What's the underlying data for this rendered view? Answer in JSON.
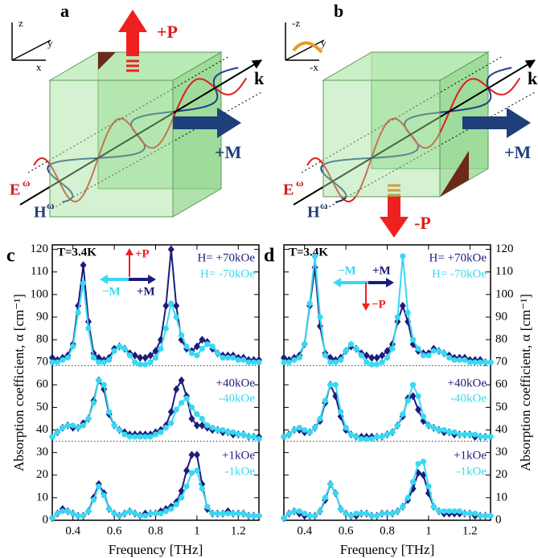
{
  "diagrams": [
    {
      "panel": "a",
      "axes": [
        "z",
        "y",
        "x"
      ],
      "polarization": "+P",
      "wavevector": "k",
      "magnetization": "+M",
      "e_field": {
        "letter": "E",
        "sup": "ω"
      },
      "h_field": {
        "letter": "H",
        "sup": "ω"
      }
    },
    {
      "panel": "b",
      "axes": [
        "-z",
        "y",
        "-x"
      ],
      "polarization": "-P",
      "wavevector": "k",
      "magnetization": "+M",
      "e_field": {
        "letter": "E",
        "sup": "ω"
      },
      "h_field": {
        "letter": "H",
        "sup": "ω"
      }
    }
  ],
  "chart_data": [
    {
      "type": "line",
      "panel": "c",
      "temperature": "T=3.4K",
      "annotations": {
        "p": "+P",
        "m_minus": "−M",
        "m_plus": "+M"
      },
      "xlabel": "Frequency [THz]",
      "ylabel": "Absorption coefficient, α [cm⁻¹]",
      "y_side": "left",
      "xlim": [
        0.3,
        1.3
      ],
      "xticks": [
        0.4,
        0.6,
        0.8,
        1.0,
        1.2
      ],
      "ylim": [
        0,
        122
      ],
      "yticks": [
        0,
        10,
        20,
        30,
        40,
        50,
        60,
        70,
        80,
        90,
        100,
        110,
        120
      ],
      "reference_lines": [
        68.5,
        35
      ],
      "x": [
        0.3,
        0.325,
        0.35,
        0.375,
        0.4,
        0.425,
        0.45,
        0.475,
        0.5,
        0.525,
        0.55,
        0.575,
        0.6,
        0.625,
        0.65,
        0.675,
        0.7,
        0.725,
        0.75,
        0.775,
        0.8,
        0.825,
        0.85,
        0.875,
        0.9,
        0.925,
        0.95,
        0.975,
        1.0,
        1.025,
        1.05,
        1.075,
        1.1,
        1.125,
        1.15,
        1.175,
        1.2,
        1.225,
        1.25,
        1.275,
        1.3
      ],
      "series": [
        {
          "name": "H= +70kOe",
          "color": "#1c1c7c",
          "marker": "diamond",
          "values": [
            72,
            71,
            72,
            73,
            78,
            95,
            113,
            88,
            74,
            72,
            71,
            72,
            76,
            77,
            76,
            74,
            73,
            72,
            72,
            73,
            75,
            80,
            95,
            120,
            95,
            80,
            76,
            75,
            77,
            80,
            79,
            76,
            74,
            73,
            73,
            73,
            72,
            72,
            71,
            71,
            71
          ]
        },
        {
          "name": "H= -70kOe",
          "color": "#38d8f2",
          "marker": "circle",
          "values": [
            70,
            70,
            71,
            72,
            77,
            92,
            105,
            85,
            72,
            70,
            70,
            71,
            75,
            77,
            76,
            73,
            70,
            69,
            69,
            70,
            72,
            76,
            85,
            96,
            90,
            82,
            77,
            74,
            73,
            76,
            78,
            77,
            74,
            72,
            72,
            72,
            71,
            71,
            70,
            70,
            70
          ]
        },
        {
          "name": "+40kOe",
          "color": "#1c1c7c",
          "marker": "diamond",
          "values": [
            37,
            39,
            41,
            42,
            41,
            41,
            43,
            45,
            53,
            62,
            58,
            47,
            42,
            40,
            39,
            38,
            38,
            38,
            38,
            38,
            39,
            40,
            42,
            48,
            58,
            62,
            55,
            45,
            42,
            42,
            41,
            40,
            40,
            39,
            39,
            38,
            38,
            38,
            37,
            37,
            37
          ]
        },
        {
          "name": "-40kOe",
          "color": "#38d8f2",
          "marker": "circle",
          "values": [
            37,
            39,
            41,
            42,
            42,
            41,
            42,
            45,
            52,
            62,
            60,
            48,
            42,
            40,
            38,
            37,
            37,
            37,
            37,
            37,
            38,
            39,
            41,
            43,
            49,
            52,
            54,
            50,
            47,
            45,
            42,
            41,
            40,
            40,
            39,
            39,
            38,
            38,
            37,
            37,
            36
          ]
        },
        {
          "name": "+1kOe",
          "color": "#1c1c7c",
          "marker": "diamond",
          "values": [
            1,
            3,
            5,
            4,
            3,
            2,
            2,
            4,
            10,
            16,
            12,
            5,
            3,
            2,
            3,
            4,
            3,
            2,
            3,
            3,
            3,
            4,
            5,
            6,
            8,
            13,
            22,
            29,
            29,
            16,
            5,
            3,
            3,
            3,
            4,
            3,
            3,
            3,
            2,
            2,
            2
          ]
        },
        {
          "name": "-1kOe",
          "color": "#38d8f2",
          "marker": "circle",
          "values": [
            1,
            3,
            4,
            4,
            3,
            2,
            2,
            4,
            9,
            15,
            11,
            5,
            3,
            2,
            3,
            4,
            3,
            2,
            2,
            3,
            3,
            3,
            4,
            5,
            7,
            10,
            15,
            21,
            22,
            14,
            6,
            3,
            3,
            3,
            3,
            3,
            3,
            3,
            2,
            2,
            2
          ]
        }
      ]
    },
    {
      "type": "line",
      "panel": "d",
      "temperature": "T=3.4K",
      "annotations": {
        "p": "−P",
        "m_minus": "−M",
        "m_plus": "+M"
      },
      "xlabel": "Frequency [THz]",
      "ylabel": "Absorption coefficient, α [cm⁻¹]",
      "y_side": "right",
      "xlim": [
        0.3,
        1.3
      ],
      "xticks": [
        0.4,
        0.6,
        0.8,
        1.0,
        1.2
      ],
      "ylim": [
        0,
        122
      ],
      "yticks": [
        0,
        10,
        20,
        30,
        40,
        50,
        60,
        70,
        80,
        90,
        100,
        110,
        120
      ],
      "reference_lines": [
        68.5,
        35
      ],
      "x": [
        0.3,
        0.325,
        0.35,
        0.375,
        0.4,
        0.425,
        0.45,
        0.475,
        0.5,
        0.525,
        0.55,
        0.575,
        0.6,
        0.625,
        0.65,
        0.675,
        0.7,
        0.725,
        0.75,
        0.775,
        0.8,
        0.825,
        0.85,
        0.875,
        0.9,
        0.925,
        0.95,
        0.975,
        1.0,
        1.025,
        1.05,
        1.075,
        1.1,
        1.125,
        1.15,
        1.175,
        1.2,
        1.225,
        1.25,
        1.275,
        1.3
      ],
      "series": [
        {
          "name": "H= +70kOe",
          "color": "#1c1c7c",
          "marker": "diamond",
          "values": [
            72,
            71,
            72,
            73,
            78,
            95,
            112,
            86,
            74,
            72,
            71,
            72,
            75,
            77,
            76,
            74,
            73,
            72,
            72,
            73,
            75,
            78,
            88,
            95,
            88,
            78,
            75,
            74,
            74,
            76,
            75,
            74,
            73,
            72,
            72,
            72,
            71,
            71,
            71,
            70,
            70
          ]
        },
        {
          "name": "H= -70kOe",
          "color": "#38d8f2",
          "marker": "circle",
          "values": [
            70,
            70,
            71,
            72,
            78,
            96,
            117,
            90,
            73,
            70,
            70,
            71,
            75,
            78,
            76,
            73,
            70,
            69,
            69,
            70,
            72,
            76,
            90,
            117,
            92,
            80,
            76,
            73,
            73,
            75,
            75,
            74,
            72,
            71,
            71,
            71,
            70,
            70,
            70,
            70,
            70
          ]
        },
        {
          "name": "+40kOe",
          "color": "#1c1c7c",
          "marker": "diamond",
          "values": [
            37,
            38,
            40,
            40,
            39,
            39,
            41,
            44,
            52,
            60,
            55,
            46,
            40,
            38,
            37,
            37,
            37,
            37,
            37,
            37,
            38,
            39,
            42,
            46,
            54,
            55,
            49,
            44,
            42,
            41,
            40,
            39,
            39,
            38,
            38,
            38,
            38,
            37,
            37,
            37,
            37
          ]
        },
        {
          "name": "-40kOe",
          "color": "#38d8f2",
          "marker": "circle",
          "values": [
            37,
            38,
            40,
            41,
            40,
            39,
            41,
            45,
            53,
            60,
            60,
            48,
            41,
            38,
            37,
            36,
            36,
            36,
            37,
            37,
            38,
            39,
            42,
            47,
            53,
            60,
            55,
            46,
            42,
            41,
            40,
            40,
            39,
            39,
            38,
            38,
            38,
            38,
            37,
            37,
            37
          ]
        },
        {
          "name": "+1kOe",
          "color": "#1c1c7c",
          "marker": "diamond",
          "values": [
            1,
            3,
            4,
            3,
            2,
            2,
            2,
            4,
            9,
            16,
            12,
            5,
            3,
            2,
            2,
            3,
            3,
            2,
            2,
            3,
            3,
            3,
            4,
            6,
            9,
            14,
            21,
            20,
            12,
            6,
            4,
            3,
            3,
            3,
            3,
            3,
            3,
            2,
            2,
            2,
            2
          ]
        },
        {
          "name": "-1kOe",
          "color": "#38d8f2",
          "marker": "circle",
          "values": [
            1,
            3,
            4,
            4,
            3,
            2,
            2,
            4,
            10,
            16,
            12,
            5,
            3,
            2,
            3,
            3,
            3,
            2,
            2,
            3,
            3,
            3,
            4,
            6,
            10,
            17,
            25,
            26,
            15,
            6,
            4,
            4,
            4,
            4,
            4,
            3,
            3,
            3,
            2,
            2,
            2
          ]
        }
      ]
    }
  ]
}
